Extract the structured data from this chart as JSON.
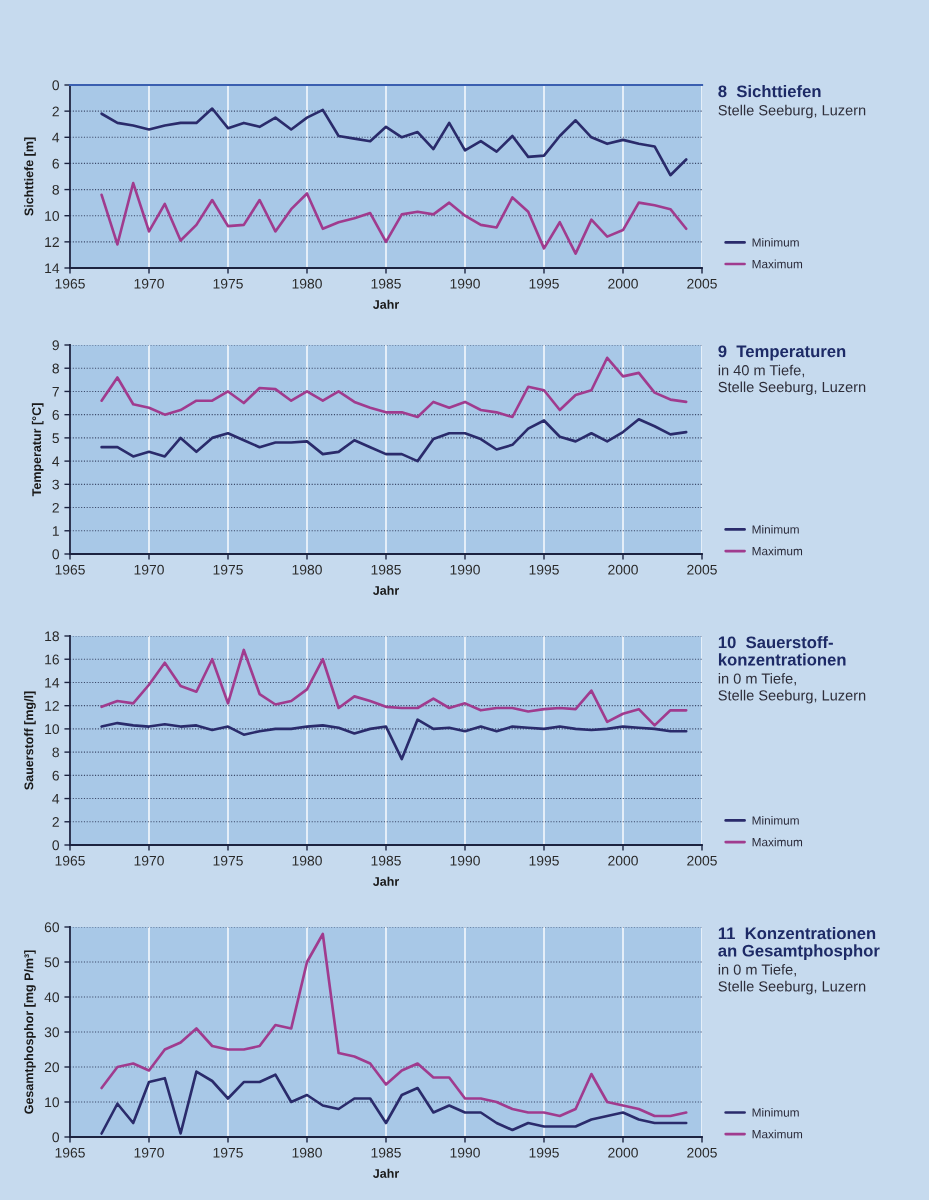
{
  "chart_data": [
    {
      "type": "line",
      "title": "8  Sichttiefen",
      "subtitle": "Stelle Seeburg, Luzern",
      "xlabel": "Jahr",
      "ylabel": "Sichttiefe [m]",
      "x": [
        1967,
        1968,
        1969,
        1970,
        1971,
        1972,
        1973,
        1974,
        1975,
        1976,
        1977,
        1978,
        1979,
        1980,
        1981,
        1982,
        1983,
        1984,
        1985,
        1986,
        1987,
        1988,
        1989,
        1990,
        1991,
        1992,
        1993,
        1994,
        1995,
        1996,
        1997,
        1998,
        1999,
        2000,
        2001,
        2002,
        2003,
        2004
      ],
      "xlim": [
        1965,
        2005
      ],
      "xticks": [
        1965,
        1970,
        1975,
        1980,
        1985,
        1990,
        1995,
        2000,
        2005
      ],
      "ylim": [
        14,
        0
      ],
      "yticks": [
        0,
        2,
        4,
        6,
        8,
        10,
        12,
        14
      ],
      "grid": true,
      "legend": "right",
      "series": [
        {
          "name": "Minimum",
          "color": "#2a2b6b",
          "values": [
            2.2,
            2.9,
            3.1,
            3.4,
            3.1,
            2.9,
            2.9,
            1.8,
            3.3,
            2.9,
            3.2,
            2.5,
            3.4,
            2.5,
            1.9,
            3.9,
            4.1,
            4.3,
            3.2,
            4.0,
            3.6,
            4.9,
            2.9,
            5.0,
            4.3,
            5.1,
            3.9,
            5.5,
            5.4,
            3.9,
            2.7,
            4.0,
            4.5,
            4.2,
            4.5,
            4.7,
            6.9,
            5.7
          ]
        },
        {
          "name": "Maximum",
          "color": "#a03b8e",
          "values": [
            8.4,
            12.2,
            7.5,
            11.2,
            9.1,
            11.9,
            10.7,
            8.8,
            10.8,
            10.7,
            8.8,
            11.2,
            9.5,
            8.3,
            11.0,
            10.5,
            10.2,
            9.8,
            12.0,
            9.9,
            9.7,
            9.9,
            9.0,
            10.0,
            10.7,
            10.9,
            8.6,
            9.7,
            12.5,
            10.5,
            12.9,
            10.3,
            11.6,
            11.1,
            9.0,
            9.2,
            9.5,
            11.0
          ]
        }
      ]
    },
    {
      "type": "line",
      "title": "9  Temperaturen",
      "subtitle": "in 40 m Tiefe,\nStelle Seeburg, Luzern",
      "xlabel": "Jahr",
      "ylabel": "Temperatur [°C]",
      "x": [
        1967,
        1968,
        1969,
        1970,
        1971,
        1972,
        1973,
        1974,
        1975,
        1976,
        1977,
        1978,
        1979,
        1980,
        1981,
        1982,
        1983,
        1984,
        1985,
        1986,
        1987,
        1988,
        1989,
        1990,
        1991,
        1992,
        1993,
        1994,
        1995,
        1996,
        1997,
        1998,
        1999,
        2000,
        2001,
        2002,
        2003,
        2004
      ],
      "xlim": [
        1965,
        2005
      ],
      "xticks": [
        1965,
        1970,
        1975,
        1980,
        1985,
        1990,
        1995,
        2000,
        2005
      ],
      "ylim": [
        0,
        9
      ],
      "yticks": [
        0,
        1,
        2,
        3,
        4,
        5,
        6,
        7,
        8,
        9
      ],
      "grid": true,
      "legend": "right",
      "series": [
        {
          "name": "Minimum",
          "color": "#2a2b6b",
          "values": [
            4.6,
            4.6,
            4.2,
            4.4,
            4.2,
            5.0,
            4.4,
            5.0,
            5.2,
            4.9,
            4.6,
            4.8,
            4.8,
            4.85,
            4.3,
            4.4,
            4.9,
            4.6,
            4.3,
            4.3,
            4.0,
            4.95,
            5.2,
            5.2,
            4.95,
            4.5,
            4.7,
            5.4,
            5.75,
            5.05,
            4.85,
            5.2,
            4.85,
            5.25,
            5.8,
            5.5,
            5.15,
            5.25
          ]
        },
        {
          "name": "Maximum",
          "color": "#a03b8e",
          "values": [
            6.6,
            7.6,
            6.45,
            6.3,
            6.0,
            6.2,
            6.6,
            6.6,
            7.0,
            6.5,
            7.15,
            7.1,
            6.6,
            7.0,
            6.6,
            7.0,
            6.55,
            6.3,
            6.1,
            6.1,
            5.9,
            6.55,
            6.3,
            6.55,
            6.2,
            6.1,
            5.9,
            7.2,
            7.05,
            6.2,
            6.85,
            7.05,
            8.45,
            7.65,
            7.8,
            6.95,
            6.65,
            6.55
          ]
        }
      ]
    },
    {
      "type": "line",
      "title": "10  Sauerstoff-\nkonzentrationen",
      "subtitle": "in 0 m Tiefe,\nStelle Seeburg, Luzern",
      "xlabel": "Jahr",
      "ylabel": "Sauerstoff [mg/l]",
      "x": [
        1967,
        1968,
        1969,
        1970,
        1971,
        1972,
        1973,
        1974,
        1975,
        1976,
        1977,
        1978,
        1979,
        1980,
        1981,
        1982,
        1983,
        1984,
        1985,
        1986,
        1987,
        1988,
        1989,
        1990,
        1991,
        1992,
        1993,
        1994,
        1995,
        1996,
        1997,
        1998,
        1999,
        2000,
        2001,
        2002,
        2003,
        2004
      ],
      "xlim": [
        1965,
        2005
      ],
      "xticks": [
        1965,
        1970,
        1975,
        1980,
        1985,
        1990,
        1995,
        2000,
        2005
      ],
      "ylim": [
        0,
        18
      ],
      "yticks": [
        0,
        2,
        4,
        6,
        8,
        10,
        12,
        14,
        16,
        18
      ],
      "grid": true,
      "legend": "right",
      "series": [
        {
          "name": "Minimum",
          "color": "#2a2b6b",
          "values": [
            10.2,
            10.5,
            10.3,
            10.2,
            10.4,
            10.2,
            10.3,
            9.9,
            10.2,
            9.5,
            9.8,
            10.0,
            10.0,
            10.2,
            10.3,
            10.1,
            9.6,
            10.0,
            10.2,
            7.4,
            10.8,
            10.0,
            10.1,
            9.8,
            10.2,
            9.8,
            10.2,
            10.1,
            10.0,
            10.2,
            10.0,
            9.9,
            10.0,
            10.2,
            10.1,
            10.0,
            9.8,
            9.8
          ]
        },
        {
          "name": "Maximum",
          "color": "#a03b8e",
          "values": [
            11.9,
            12.4,
            12.2,
            13.8,
            15.7,
            13.7,
            13.2,
            16.0,
            12.2,
            16.8,
            13.0,
            12.1,
            12.4,
            13.4,
            16.0,
            11.8,
            12.8,
            12.4,
            11.9,
            11.8,
            11.8,
            12.6,
            11.8,
            12.2,
            11.6,
            11.8,
            11.8,
            11.5,
            11.7,
            11.8,
            11.7,
            13.3,
            10.6,
            11.3,
            11.7,
            10.3,
            11.6,
            11.6
          ]
        }
      ]
    },
    {
      "type": "line",
      "title": "11  Konzentrationen\nan Gesamtphosphor",
      "subtitle": "in 0 m Tiefe,\nStelle Seeburg, Luzern",
      "xlabel": "Jahr",
      "ylabel": "Gesamtphosphor [mg P/m³]",
      "x": [
        1967,
        1968,
        1969,
        1970,
        1971,
        1972,
        1973,
        1974,
        1975,
        1976,
        1977,
        1978,
        1979,
        1980,
        1981,
        1982,
        1983,
        1984,
        1985,
        1986,
        1987,
        1988,
        1989,
        1990,
        1991,
        1992,
        1993,
        1994,
        1995,
        1996,
        1997,
        1998,
        1999,
        2000,
        2001,
        2002,
        2003,
        2004
      ],
      "xlim": [
        1965,
        2005
      ],
      "xticks": [
        1965,
        1970,
        1975,
        1980,
        1985,
        1990,
        1995,
        2000,
        2005
      ],
      "ylim": [
        0,
        60
      ],
      "yticks": [
        0,
        10,
        20,
        30,
        40,
        50,
        60
      ],
      "grid": true,
      "legend": "right",
      "series": [
        {
          "name": "Minimum",
          "color": "#2a2b6b",
          "values": [
            1,
            9.5,
            4,
            15.7,
            16.8,
            1,
            18.7,
            16,
            11,
            15.7,
            15.7,
            17.8,
            10,
            12,
            9,
            8,
            11,
            11,
            4,
            12,
            14,
            7,
            9,
            7,
            7,
            4,
            2,
            4,
            3,
            3,
            3,
            5,
            6,
            7,
            5,
            4,
            4,
            4
          ]
        },
        {
          "name": "Maximum",
          "color": "#a03b8e",
          "values": [
            14,
            20,
            21,
            19,
            25,
            27,
            31,
            26,
            25,
            25,
            26,
            32,
            31,
            50,
            58,
            24,
            23,
            21,
            15,
            19,
            21,
            17,
            17,
            11,
            11,
            10,
            8,
            7,
            7,
            6,
            8,
            18,
            10,
            9,
            8,
            6,
            6,
            7
          ]
        }
      ]
    }
  ]
}
